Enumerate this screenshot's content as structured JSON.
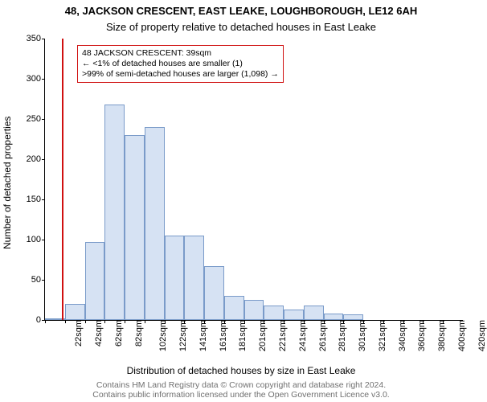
{
  "title_line1": "48, JACKSON CRESCENT, EAST LEAKE, LOUGHBOROUGH, LE12 6AH",
  "title_line2": "Size of property relative to detached houses in East Leake",
  "ylabel": "Number of detached properties",
  "xlabel": "Distribution of detached houses by size in East Leake",
  "footer_line1": "Contains HM Land Registry data © Crown copyright and database right 2024.",
  "footer_line2": "Contains public information licensed under the Open Government Licence v3.0.",
  "annot_line1": "48 JACKSON CRESCENT: 39sqm",
  "annot_line2": "← <1% of detached houses are smaller (1)",
  "annot_line3": ">99% of semi-detached houses are larger (1,098) →",
  "title_fontsize": 13,
  "subtitle_fontsize": 13,
  "axis_label_fontsize": 12,
  "tick_fontsize": 11,
  "annot_fontsize": 10.5,
  "footer_fontsize": 10.5,
  "chart": {
    "type": "histogram",
    "ylim": [
      0,
      350
    ],
    "ytick_step": 50,
    "yticks": [
      0,
      50,
      100,
      150,
      200,
      250,
      300,
      350
    ],
    "categories": [
      "22sqm",
      "42sqm",
      "62sqm",
      "82sqm",
      "102sqm",
      "122sqm",
      "141sqm",
      "161sqm",
      "181sqm",
      "201sqm",
      "221sqm",
      "241sqm",
      "261sqm",
      "281sqm",
      "301sqm",
      "321sqm",
      "340sqm",
      "360sqm",
      "380sqm",
      "400sqm",
      "420sqm"
    ],
    "values": [
      1,
      20,
      97,
      268,
      230,
      240,
      105,
      105,
      67,
      30,
      25,
      18,
      13,
      18,
      8,
      7,
      0,
      0,
      0,
      0,
      0
    ],
    "bar_fill": "#d6e2f3",
    "bar_border": "#7a9bc9",
    "background_color": "#ffffff",
    "axis_color": "#000000",
    "marker_x_index": 0.85,
    "marker_color": "#d01010",
    "annot_border": "#d01010",
    "annot_bg": "#ffffff"
  }
}
